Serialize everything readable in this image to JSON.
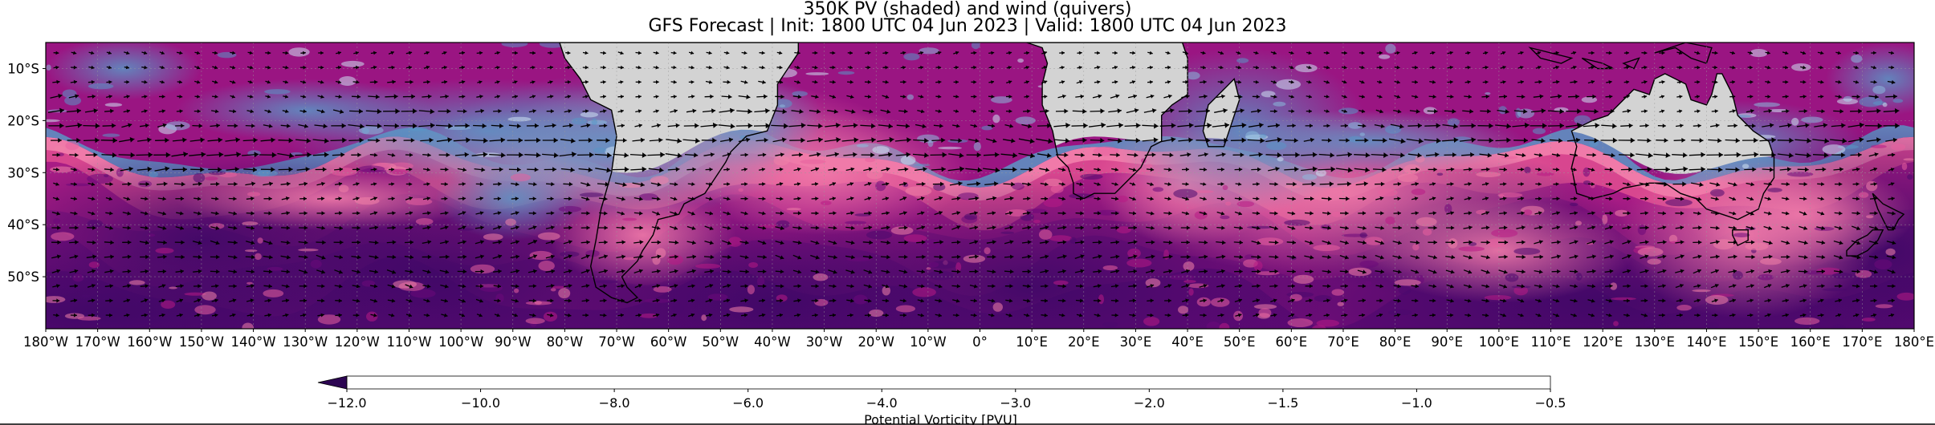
{
  "title_line1": "350K PV (shaded) and wind (quivers)",
  "title_line2": "GFS Forecast | Init: 1800 UTC 04 Jun 2023 | Valid: 1800 UTC 04 Jun 2023",
  "chart_data": {
    "type": "heatmap",
    "title": "350K PV (shaded) and wind (quivers)",
    "subtitle": "GFS Forecast | Init: 1800 UTC 04 Jun 2023 | Valid: 1800 UTC 04 Jun 2023",
    "projection": "PlateCarree",
    "lon_range": [
      -180,
      180
    ],
    "lat_range": [
      -60,
      -5
    ],
    "x_ticks": [
      "180°W",
      "170°W",
      "160°W",
      "150°W",
      "140°W",
      "130°W",
      "120°W",
      "110°W",
      "100°W",
      "90°W",
      "80°W",
      "70°W",
      "60°W",
      "50°W",
      "40°W",
      "30°W",
      "20°W",
      "10°W",
      "0°",
      "10°E",
      "20°E",
      "30°E",
      "40°E",
      "50°E",
      "60°E",
      "70°E",
      "80°E",
      "90°E",
      "100°E",
      "110°E",
      "120°E",
      "130°E",
      "140°E",
      "150°E",
      "160°E",
      "170°E",
      "180°E"
    ],
    "y_ticks": [
      {
        "lat": -10,
        "label": "10°S"
      },
      {
        "lat": -20,
        "label": "20°S"
      },
      {
        "lat": -30,
        "label": "30°S"
      },
      {
        "lat": -40,
        "label": "40°S"
      },
      {
        "lat": -50,
        "label": "50°S"
      }
    ],
    "grid": true,
    "colorbar": {
      "label": "Potential Vorticity [PVU]",
      "orientation": "horizontal",
      "extend": "min",
      "levels": [
        -12.0,
        -10.0,
        -8.0,
        -6.0,
        -4.0,
        -3.0,
        -2.0,
        -1.5,
        -1.0,
        -0.5
      ],
      "tick_labels": [
        "−12.0",
        "−10.0",
        "−8.0",
        "−6.0",
        "−4.0",
        "−3.0",
        "−2.0",
        "−1.5",
        "−1.0",
        "−0.5"
      ],
      "colors": [
        "#4b0a6e",
        "#6b0a7a",
        "#940a80",
        "#b81a85",
        "#d63a8f",
        "#e8609e",
        "#f082a8",
        "#4b8fc0",
        "#8ab9dc",
        "#cde2f2"
      ],
      "extend_color": "#2c0552"
    },
    "landmasses": [
      "South America",
      "Africa",
      "Madagascar",
      "Australia",
      "New Zealand"
    ],
    "features": {
      "subtropical_jet_lat_approx": -27,
      "pv_boundary_lat_approx": -28,
      "land_fill": "#d3d3d3",
      "quiver_color": "#000000"
    }
  }
}
